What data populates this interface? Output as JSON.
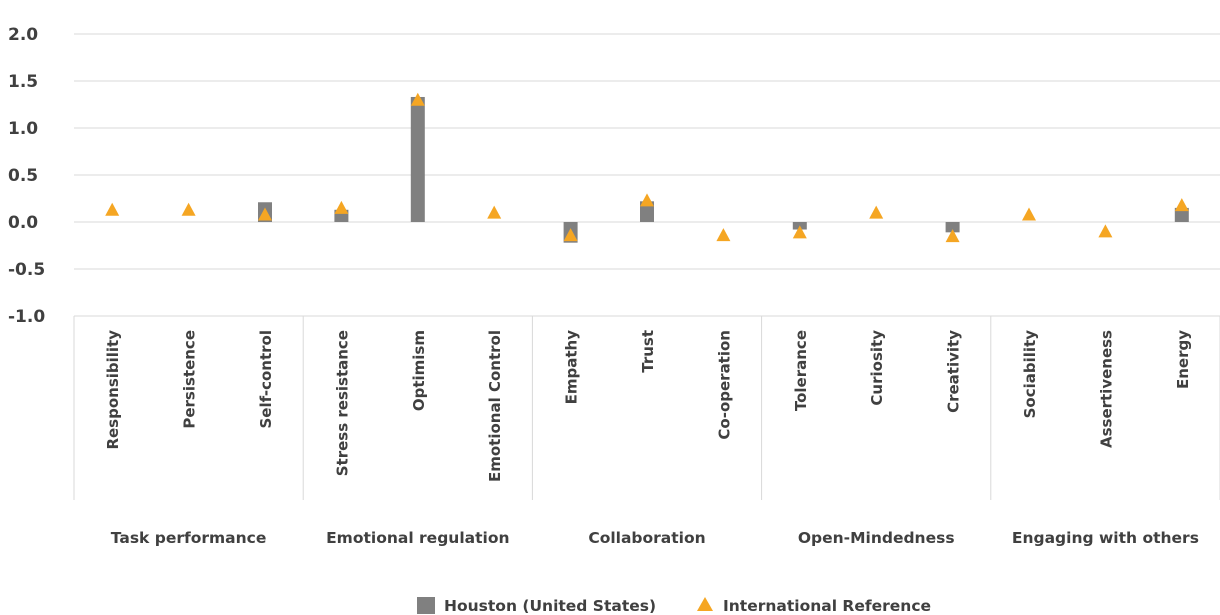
{
  "chart_data": {
    "type": "bar",
    "ylim": [
      -1.0,
      2.0
    ],
    "y_ticks": [
      "2.0",
      "1.5",
      "1.0",
      "0.5",
      "0.0",
      "-0.5",
      "-1.0"
    ],
    "y_tick_values": [
      2.0,
      1.5,
      1.0,
      0.5,
      0.0,
      -0.5,
      -1.0
    ],
    "grid": true,
    "legend_position": "bottom",
    "categories": [
      "Responsibility",
      "Persistence",
      "Self-control",
      "Stress resistance",
      "Optimism",
      "Emotional Control",
      "Empathy",
      "Trust",
      "Co-operation",
      "Tolerance",
      "Curiosity",
      "Creativity",
      "Sociability",
      "Assertiveness",
      "Energy"
    ],
    "groups": [
      {
        "label": "Task performance",
        "size": 3
      },
      {
        "label": "Emotional regulation",
        "size": 3
      },
      {
        "label": "Collaboration",
        "size": 3
      },
      {
        "label": "Open-Mindedness",
        "size": 3
      },
      {
        "label": "Engaging with others",
        "size": 3
      }
    ],
    "series": [
      {
        "name": "Houston (United States)",
        "kind": "bar",
        "color": "#808080",
        "values": [
          0.0,
          0.0,
          0.21,
          0.13,
          1.33,
          0.0,
          -0.22,
          0.22,
          0.0,
          -0.08,
          0.0,
          -0.11,
          0.0,
          0.0,
          0.15
        ]
      },
      {
        "name": "International Reference",
        "kind": "triangle-marker",
        "color": "#F5A623",
        "values": [
          0.13,
          0.13,
          0.08,
          0.15,
          1.3,
          0.1,
          -0.14,
          0.23,
          -0.14,
          -0.11,
          0.1,
          -0.15,
          0.08,
          -0.1,
          0.18
        ]
      }
    ]
  }
}
